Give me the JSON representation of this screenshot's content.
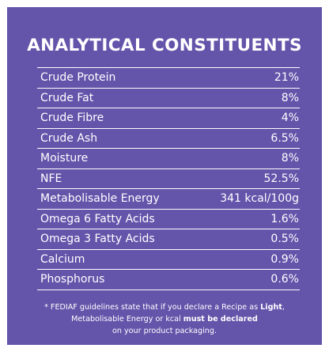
{
  "panel": {
    "title": "ANALYTICAL CONSTITUENTS",
    "background": "#6454aa"
  },
  "rows": [
    {
      "name": "Crude Protein",
      "value": "21%"
    },
    {
      "name": "Crude Fat",
      "value": "8%"
    },
    {
      "name": "Crude Fibre",
      "value": "4%"
    },
    {
      "name": "Crude Ash",
      "value": "6.5%"
    },
    {
      "name": "Moisture",
      "value": "8%"
    },
    {
      "name": "NFE",
      "value": "52.5%"
    },
    {
      "name": "Metabolisable Energy",
      "value": "341 kcal/100g"
    },
    {
      "name": "Omega 6 Fatty Acids",
      "value": "1.6%"
    },
    {
      "name": "Omega 3 Fatty Acids",
      "value": "0.5%"
    },
    {
      "name": "Calcium",
      "value": "0.9%"
    },
    {
      "name": "Phosphorus",
      "value": "0.6%"
    }
  ],
  "footnote": {
    "line1_prefix": "* FEDIAF guidelines state that if you declare a Recipe as ",
    "line1_bold": "Light",
    "line1_suffix": ",",
    "line2_prefix": "Metabolisable Energy or kcal ",
    "line2_bold": "must be declared",
    "line3": "on your product packaging."
  }
}
